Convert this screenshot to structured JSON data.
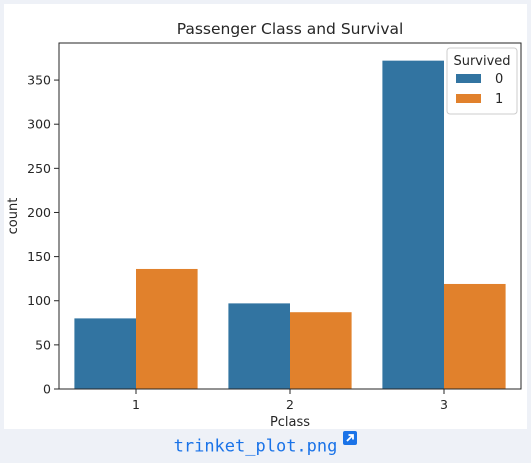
{
  "chart_data": {
    "type": "bar",
    "title": "Passenger Class and Survival",
    "xlabel": "Pclass",
    "ylabel": "count",
    "categories": [
      "1",
      "2",
      "3"
    ],
    "series": [
      {
        "name": "0",
        "values": [
          80,
          97,
          372
        ],
        "color": "#3274a1"
      },
      {
        "name": "1",
        "values": [
          136,
          87,
          119
        ],
        "color": "#e1812c"
      }
    ],
    "ylim": [
      0,
      392
    ],
    "yticks": [
      0,
      50,
      100,
      150,
      200,
      250,
      300,
      350
    ],
    "legend": {
      "title": "Survived",
      "placement": "top-right"
    },
    "grid": false
  },
  "caption": {
    "filename": "trinket_plot.png",
    "icon": "external-link-icon",
    "link_color": "#1a73e8"
  }
}
